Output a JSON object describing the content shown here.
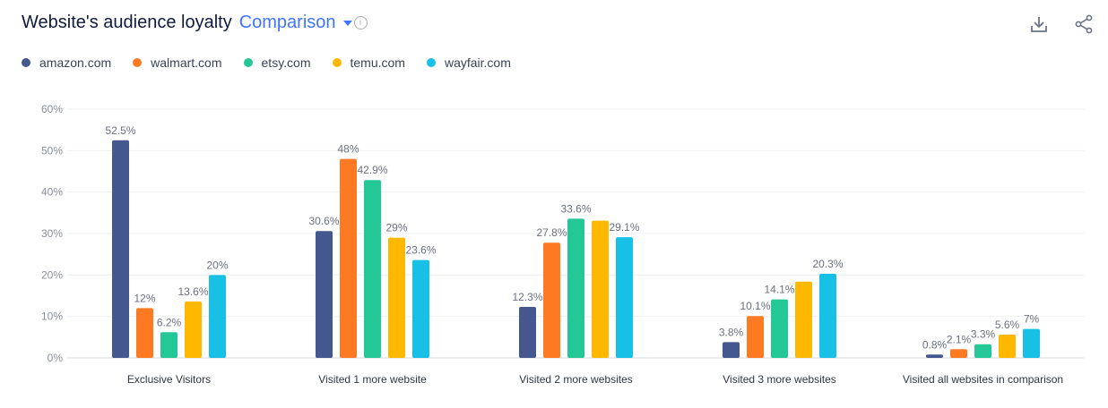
{
  "header": {
    "title": "Website's audience loyalty",
    "mode": "Comparison",
    "info_icon": "info-icon"
  },
  "toolbar": {
    "download_icon": "download-icon",
    "share_icon": "share-icon"
  },
  "chart_data": {
    "type": "bar",
    "title": "Website's audience loyalty",
    "categories": [
      "Exclusive Visitors",
      "Visited 1 more website",
      "Visited 2 more websites",
      "Visited 3 more websites",
      "Visited all websites in comparison"
    ],
    "ylim": [
      0,
      60
    ],
    "yticks": [
      "0%",
      "10%",
      "20%",
      "30%",
      "40%",
      "50%",
      "60%"
    ],
    "grid": true,
    "legend": "top-left",
    "series": [
      {
        "name": "amazon.com",
        "color": "#45578f",
        "values": [
          52.5,
          30.6,
          12.3,
          3.8,
          0.8
        ],
        "labels": [
          "52.5%",
          "30.6%",
          "12.3%",
          "3.8%",
          "0.8%"
        ]
      },
      {
        "name": "walmart.com",
        "color": "#fd7a23",
        "values": [
          12,
          48,
          27.8,
          10.1,
          2.1
        ],
        "labels": [
          "12%",
          "48%",
          "27.8%",
          "10.1%",
          "2.1%"
        ]
      },
      {
        "name": "etsy.com",
        "color": "#23c896",
        "values": [
          6.2,
          42.9,
          33.6,
          14.1,
          3.3
        ],
        "labels": [
          "6.2%",
          "42.9%",
          "33.6%",
          "14.1%",
          "3.3%"
        ]
      },
      {
        "name": "temu.com",
        "color": "#ffb800",
        "values": [
          13.6,
          29,
          33.1,
          18.4,
          5.6
        ],
        "labels": [
          "13.6%",
          "29%",
          "",
          "",
          "5.6%"
        ]
      },
      {
        "name": "wayfair.com",
        "color": "#17c0e4",
        "values": [
          20,
          23.6,
          29.1,
          20.3,
          7
        ],
        "labels": [
          "20%",
          "23.6%",
          "29.1%",
          "20.3%",
          "7%"
        ]
      }
    ]
  }
}
